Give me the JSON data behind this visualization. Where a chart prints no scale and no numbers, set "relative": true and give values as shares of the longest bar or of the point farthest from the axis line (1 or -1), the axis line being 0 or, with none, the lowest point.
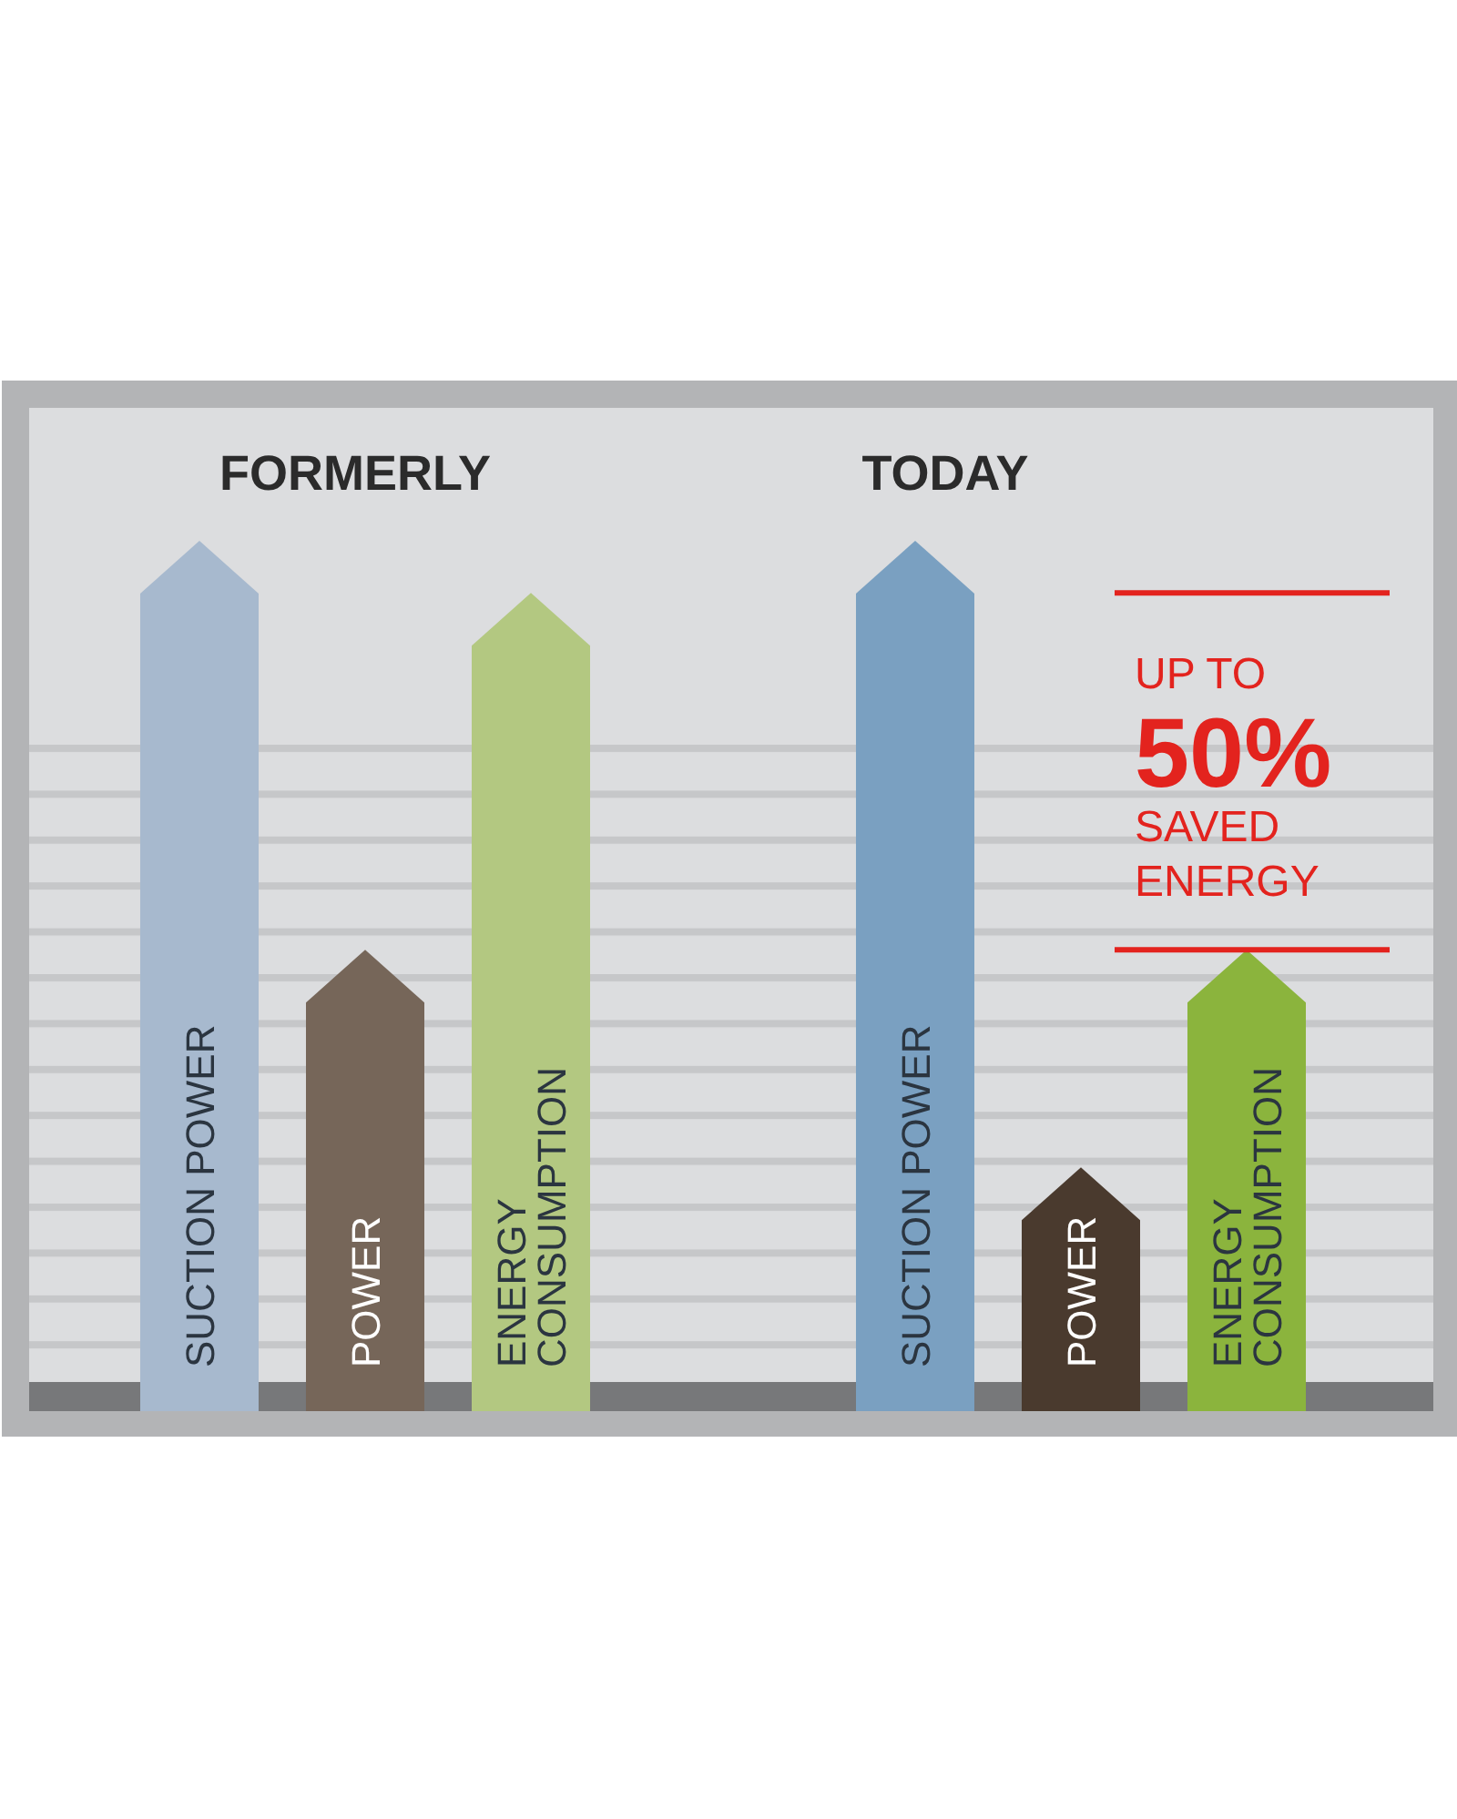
{
  "chart_data": [
    {
      "type": "bar",
      "title": "FORMERLY",
      "categories": [
        "SUCTION POWER",
        "POWER",
        "ENERGY CONSUMPTION"
      ],
      "values": [
        1,
        0.53,
        0.94
      ],
      "colors": [
        "#a7b9ce",
        "#766659",
        "#b3c881"
      ],
      "relative": true
    },
    {
      "type": "bar",
      "title": "TODAY",
      "categories": [
        "SUCTION POWER",
        "POWER",
        "ENERGY CONSUMPTION"
      ],
      "values": [
        1,
        0.28,
        0.53
      ],
      "colors": [
        "#7aa0c1",
        "#4a3a2e",
        "#8bb43d"
      ],
      "relative": true,
      "ref_lines": [
        {
          "axis": "y",
          "value": 0.94,
          "color": "#e3231e"
        },
        {
          "axis": "y",
          "value": 0.53,
          "color": "#e3231e"
        }
      ],
      "annotations": [
        "UP TO",
        "50%",
        "SAVED ENERGY"
      ]
    }
  ]
}
